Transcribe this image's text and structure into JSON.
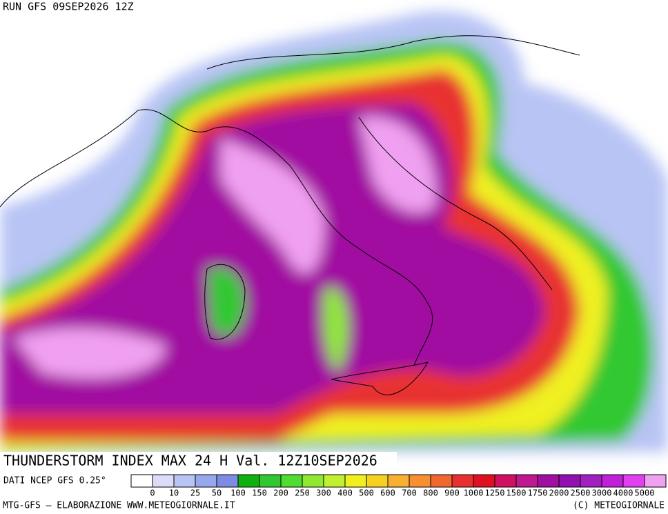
{
  "header": {
    "run": "RUN GFS 09SEP2026 12Z"
  },
  "title": "THUNDERSTORM INDEX MAX 24 H Val. 12Z10SEP2026",
  "source": "DATI NCEP GFS 0.25°",
  "legend": {
    "labels": [
      0,
      10,
      25,
      50,
      100,
      150,
      200,
      250,
      300,
      400,
      500,
      600,
      700,
      800,
      900,
      1000,
      1250,
      1500,
      1750,
      2000,
      2500,
      3000,
      4000,
      5000
    ],
    "colors": [
      "#ffffff",
      "#dcdcf8",
      "#b8c4f4",
      "#98a8ec",
      "#7c8ce4",
      "#10b010",
      "#30c830",
      "#50dc30",
      "#90e830",
      "#c0f030",
      "#f0f020",
      "#f8d020",
      "#f8b030",
      "#f89030",
      "#f06830",
      "#e83030",
      "#e01020",
      "#d01060",
      "#c01890",
      "#a010a0",
      "#9010b0",
      "#a020c0",
      "#c020d8",
      "#e040f0",
      "#f0a0f0"
    ]
  },
  "footer": {
    "left": "MTG-GFS – ELABORAZIONE WWW.METEOGIORNALE.IT",
    "right": "(C) METEOGIORNALE"
  }
}
